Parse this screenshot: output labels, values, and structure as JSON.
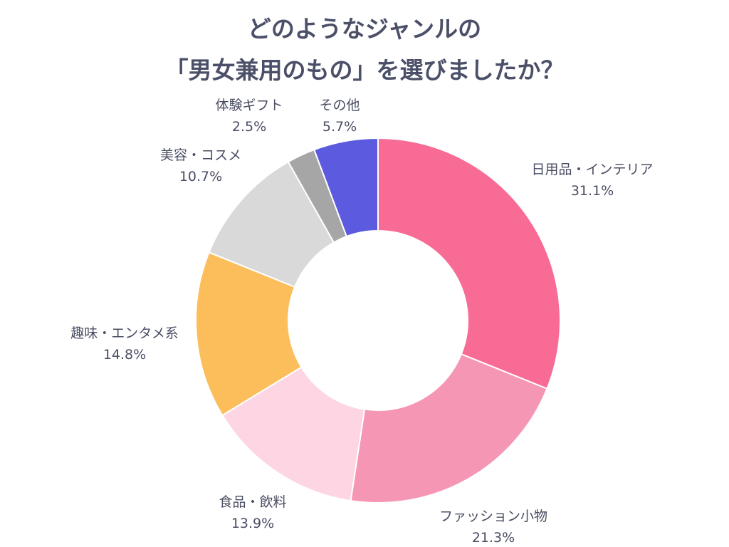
{
  "chart_data": {
    "type": "pie",
    "title_lines": [
      "どのようなジャンルの",
      "「男女兼用のもの」を選びましたか？"
    ],
    "slices": [
      {
        "label": "日用品・インテリア",
        "value": 31.1,
        "display": "31.1%",
        "color": "#f76b95"
      },
      {
        "label": "ファッション小物",
        "value": 21.3,
        "display": "21.3%",
        "color": "#f696b5"
      },
      {
        "label": "食品・飲料",
        "value": 13.9,
        "display": "13.9%",
        "color": "#fdd5e3"
      },
      {
        "label": "趣味・エンタメ系",
        "value": 14.8,
        "display": "14.8%",
        "color": "#fcbd5b"
      },
      {
        "label": "美容・コスメ",
        "value": 10.7,
        "display": "10.7%",
        "color": "#d9d9d9"
      },
      {
        "label": "体験ギフト",
        "value": 2.5,
        "display": "2.5%",
        "color": "#a6a6a6"
      },
      {
        "label": "その他",
        "value": 5.7,
        "display": "5.7%",
        "color": "#5c5bdf"
      }
    ]
  }
}
